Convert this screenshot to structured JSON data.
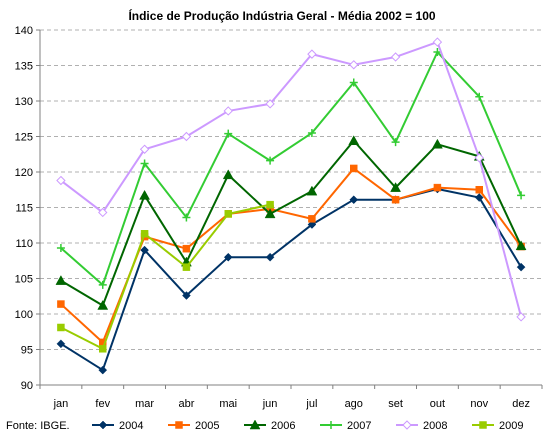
{
  "chart_data": {
    "type": "line",
    "title": "Índice de Produção Indústria Geral - Média 2002 = 100",
    "xlabel": "",
    "ylabel": "",
    "categories": [
      "jan",
      "fev",
      "mar",
      "abr",
      "mai",
      "jun",
      "jul",
      "ago",
      "set",
      "out",
      "nov",
      "dez"
    ],
    "ylim": [
      90,
      140
    ],
    "yticks": [
      90,
      95,
      100,
      105,
      110,
      115,
      120,
      125,
      130,
      135,
      140
    ],
    "grid": true,
    "legend_position": "bottom",
    "source": "Fonte: IBGE.",
    "series": [
      {
        "name": "2004",
        "color": "#003366",
        "marker": "diamond",
        "values": [
          95.8,
          92.1,
          109.0,
          102.6,
          108.0,
          108.0,
          112.6,
          116.1,
          116.1,
          117.6,
          116.4,
          106.6
        ]
      },
      {
        "name": "2005",
        "color": "#ff6600",
        "marker": "square",
        "values": [
          101.4,
          96.0,
          110.9,
          109.2,
          114.1,
          114.8,
          113.4,
          120.5,
          116.1,
          117.8,
          117.5,
          109.5
        ]
      },
      {
        "name": "2006",
        "color": "#006600",
        "marker": "triangle",
        "values": [
          104.7,
          101.2,
          116.7,
          107.3,
          119.6,
          114.1,
          117.3,
          124.4,
          117.8,
          123.9,
          122.2,
          109.6
        ]
      },
      {
        "name": "2007",
        "color": "#33cc33",
        "marker": "plus",
        "values": [
          109.3,
          104.1,
          121.2,
          113.6,
          125.4,
          121.6,
          125.5,
          132.6,
          124.2,
          136.9,
          130.6,
          116.7
        ]
      },
      {
        "name": "2008",
        "color": "#cc99ff",
        "marker": "hollow-diamond",
        "values": [
          118.8,
          114.3,
          123.2,
          125.0,
          128.6,
          129.6,
          136.6,
          135.1,
          136.2,
          138.3,
          122.0,
          99.6
        ]
      },
      {
        "name": "2009",
        "color": "#99cc00",
        "marker": "square",
        "values": [
          98.1,
          95.1,
          111.3,
          106.6,
          114.1,
          115.4,
          null,
          null,
          null,
          null,
          null,
          null
        ]
      }
    ]
  }
}
